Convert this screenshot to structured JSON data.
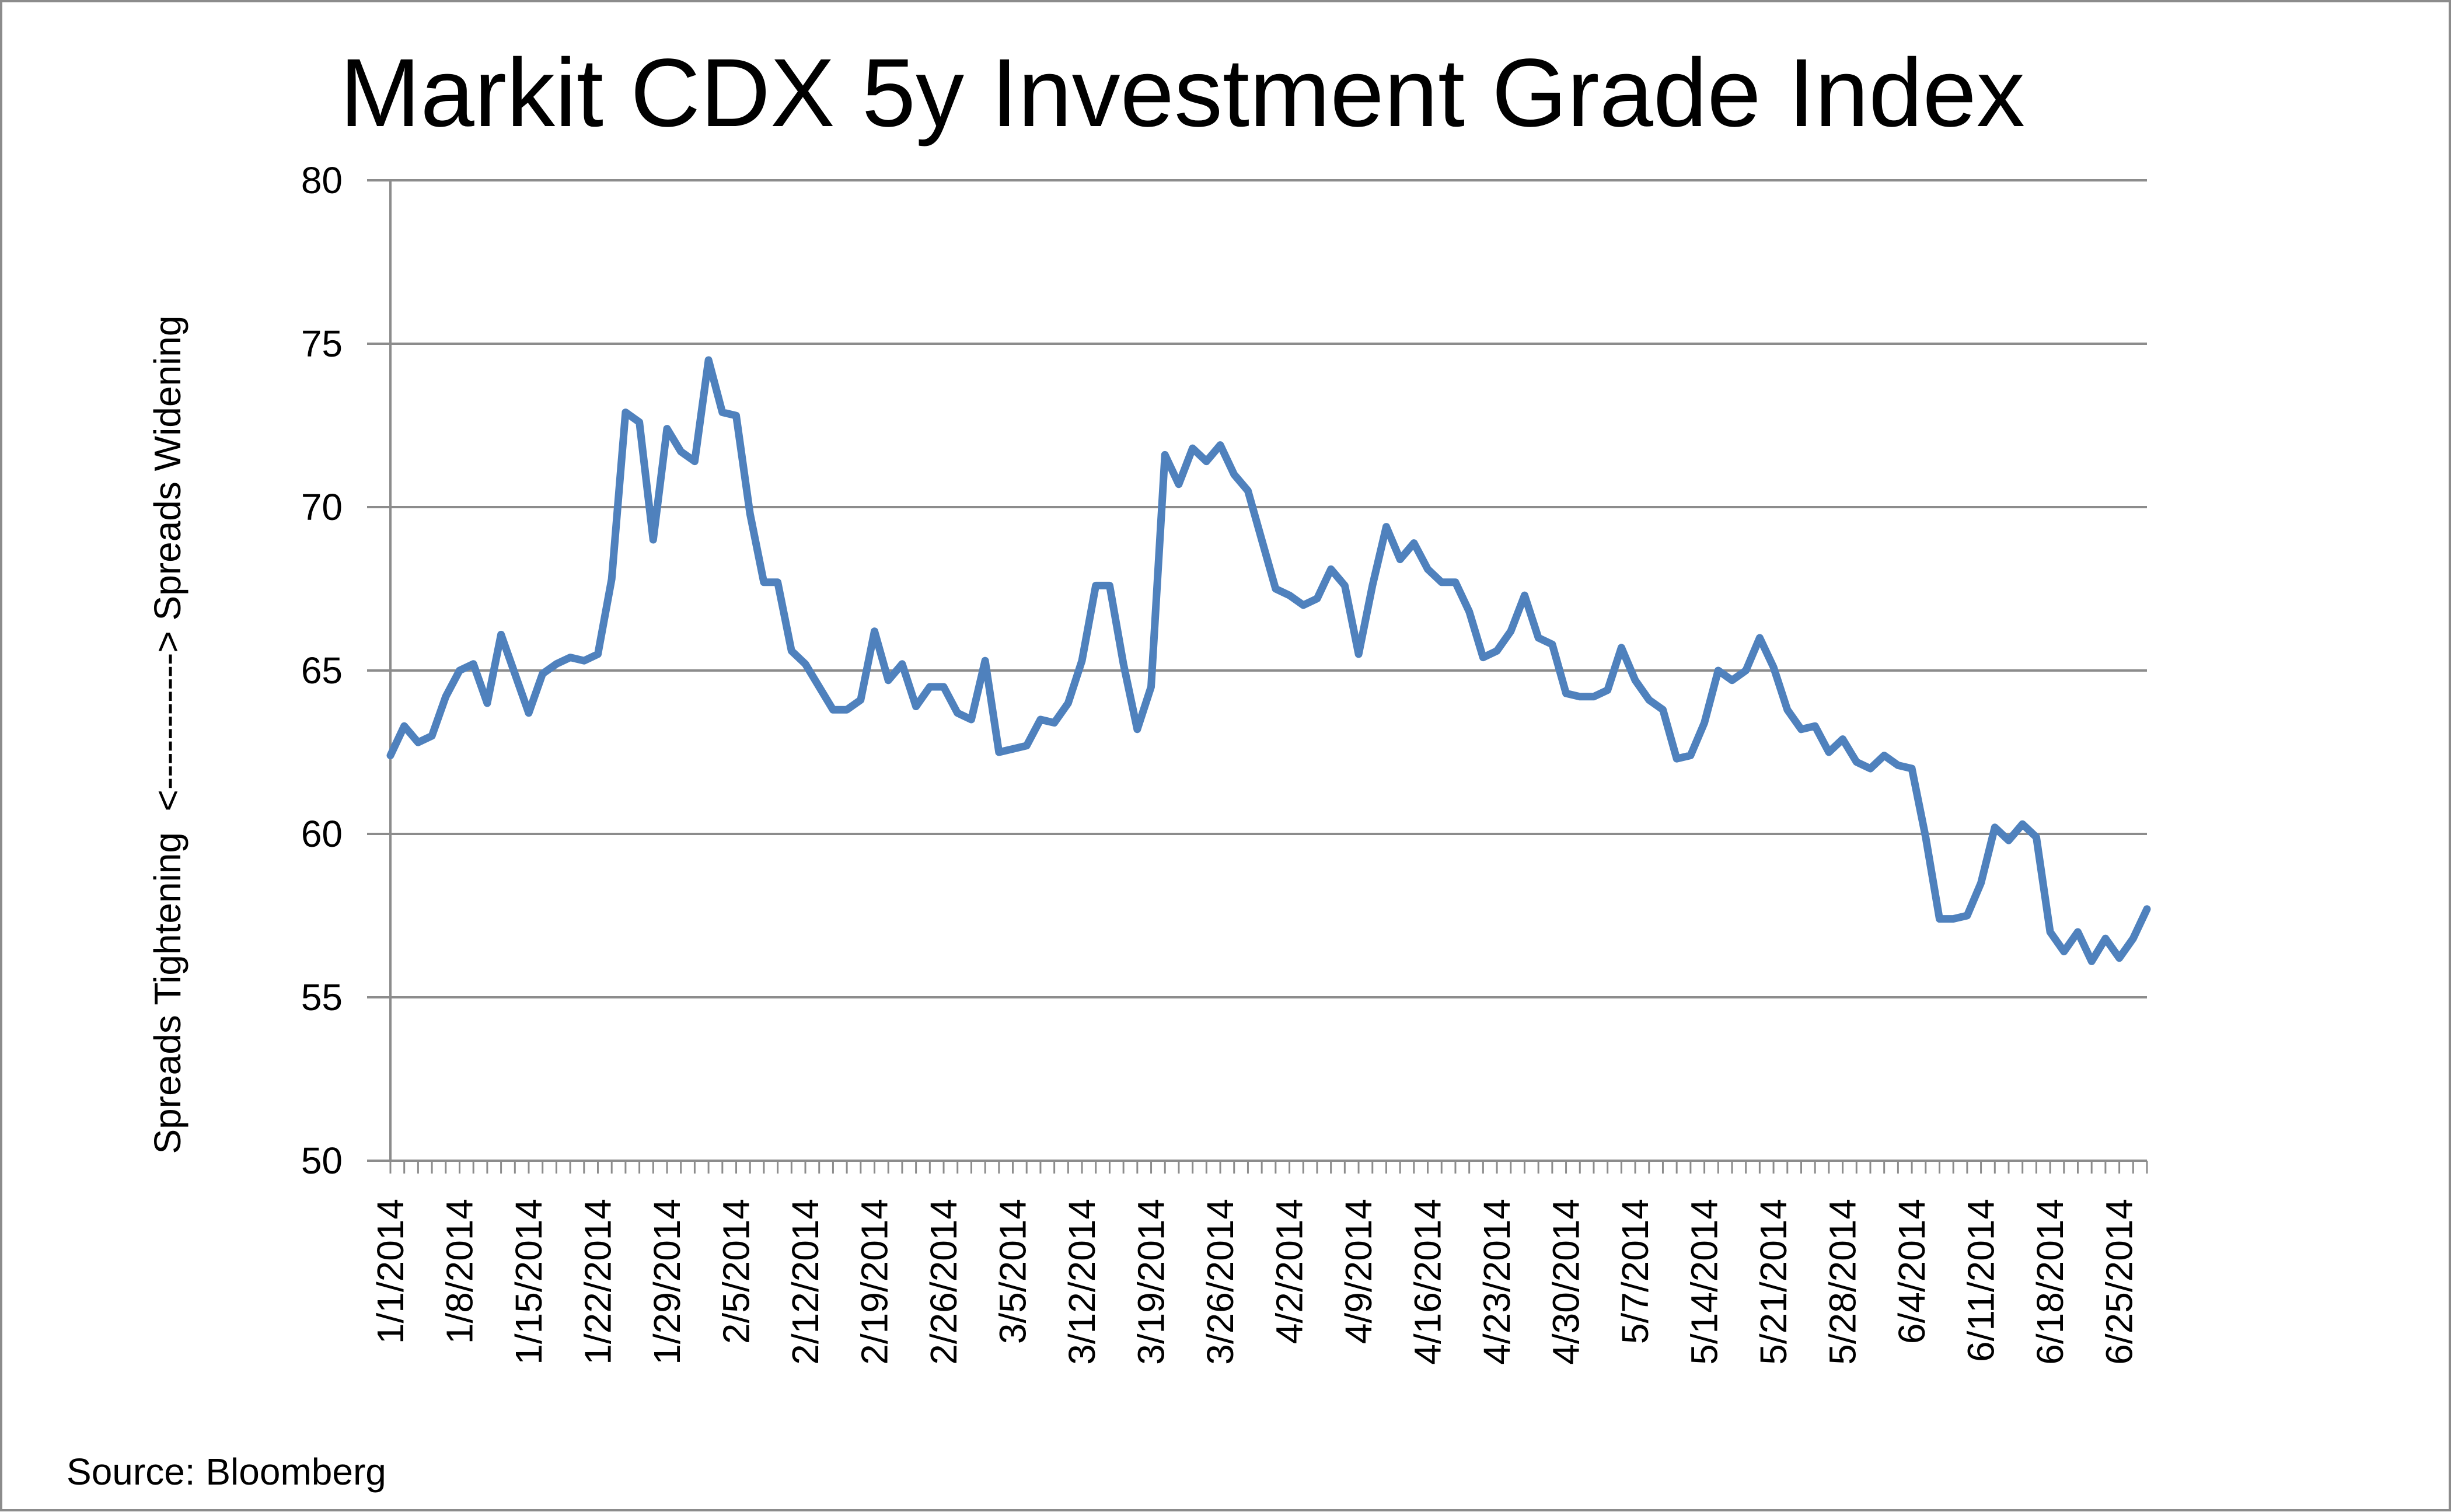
{
  "chart_data": {
    "type": "line",
    "title": "Markit CDX 5y Investment Grade Index",
    "ylabel": "Spreads Tightening  <-----------> Spreads Widening",
    "xlabel": "",
    "ylim": [
      50,
      80
    ],
    "yticks": [
      50,
      55,
      60,
      65,
      70,
      75,
      80
    ],
    "grid": true,
    "legend": "none",
    "x_tick_labels": [
      "1/1/2014",
      "1/8/2014",
      "1/15/2014",
      "1/22/2014",
      "1/29/2014",
      "2/5/2014",
      "2/12/2014",
      "2/19/2014",
      "2/26/2014",
      "3/5/2014",
      "3/12/2014",
      "3/19/2014",
      "3/26/2014",
      "4/2/2014",
      "4/9/2014",
      "4/16/2014",
      "4/23/2014",
      "4/30/2014",
      "5/7/2014",
      "5/14/2014",
      "5/21/2014",
      "5/28/2014",
      "6/4/2014",
      "6/11/2014",
      "6/18/2014",
      "6/25/2014"
    ],
    "series": [
      {
        "color": "#4f81bd",
        "values": [
          62.4,
          63.3,
          62.8,
          63.0,
          64.2,
          65.0,
          65.2,
          64.0,
          66.1,
          64.9,
          63.7,
          64.9,
          65.2,
          65.4,
          65.3,
          65.5,
          67.8,
          72.9,
          72.6,
          69.0,
          72.4,
          71.7,
          71.4,
          74.5,
          72.9,
          72.8,
          69.8,
          67.7,
          67.7,
          65.6,
          65.2,
          64.5,
          63.8,
          63.8,
          64.1,
          66.2,
          64.7,
          65.2,
          63.9,
          64.5,
          64.5,
          63.7,
          63.5,
          65.3,
          62.5,
          62.6,
          62.7,
          63.5,
          63.4,
          64.0,
          65.3,
          67.6,
          67.6,
          65.2,
          63.2,
          64.5,
          71.6,
          70.7,
          71.8,
          71.4,
          71.9,
          71.0,
          70.5,
          69.0,
          67.5,
          67.3,
          67.0,
          67.2,
          68.1,
          67.6,
          65.5,
          67.6,
          69.4,
          68.4,
          68.9,
          68.1,
          67.7,
          67.7,
          66.8,
          65.4,
          65.6,
          66.2,
          67.3,
          66.0,
          65.8,
          64.3,
          64.2,
          64.2,
          64.4,
          65.7,
          64.7,
          64.1,
          63.8,
          62.3,
          62.4,
          63.4,
          65.0,
          64.7,
          65.0,
          66.0,
          65.1,
          63.8,
          63.2,
          63.3,
          62.5,
          62.9,
          62.2,
          62.0,
          62.4,
          62.1,
          62.0,
          59.9,
          57.4,
          57.4,
          57.5,
          58.5,
          60.2,
          59.8,
          60.3,
          59.9,
          57.0,
          56.4,
          57.0,
          56.1,
          56.8,
          56.2,
          56.8,
          57.7
        ]
      }
    ]
  },
  "source_note": "Source: Bloomberg"
}
